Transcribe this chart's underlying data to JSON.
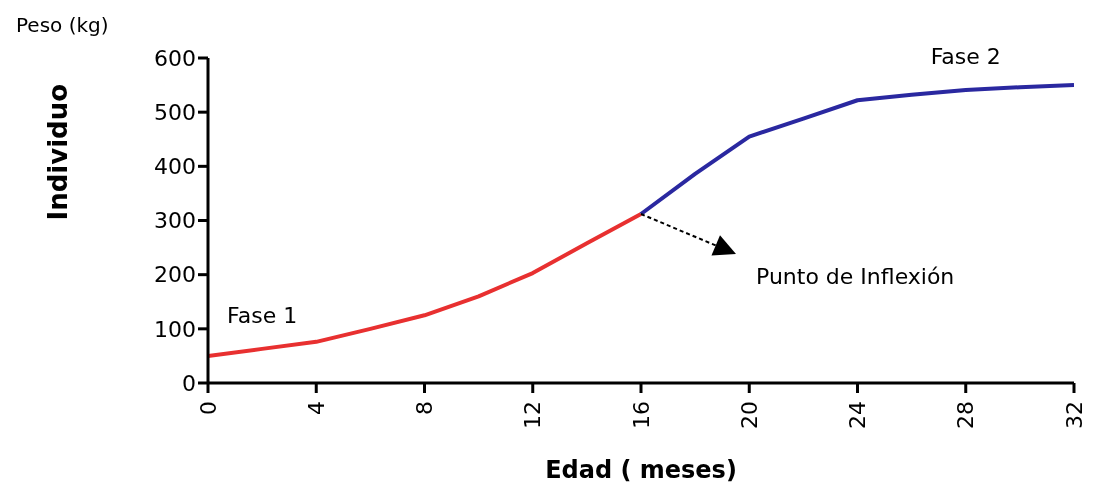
{
  "chart_data": {
    "type": "line",
    "ylabel": "Individuo",
    "xlabel": "Edad ( meses)",
    "annotations": [
      "Peso (kg)",
      "Punto de Inflexión"
    ],
    "xlim": [
      0,
      32
    ],
    "xticks": [
      0,
      4,
      8,
      12,
      16,
      20,
      24,
      28,
      32
    ],
    "ylim": [
      0,
      600
    ],
    "yticks": [
      0,
      100,
      200,
      300,
      400,
      500,
      600
    ],
    "series": [
      {
        "name": "Fase 1",
        "color": "#e83030",
        "x": [
          0,
          2,
          4,
          6,
          8,
          10,
          12,
          14,
          16
        ],
        "values": [
          50,
          63,
          76,
          100,
          125,
          160,
          203,
          258,
          312
        ]
      },
      {
        "name": "Fase 2",
        "color": "#2a28a0",
        "x": [
          16,
          18,
          20,
          22,
          24,
          26,
          28,
          30,
          32
        ],
        "values": [
          312,
          386,
          455,
          488,
          522,
          532,
          541,
          546,
          550
        ]
      }
    ]
  }
}
